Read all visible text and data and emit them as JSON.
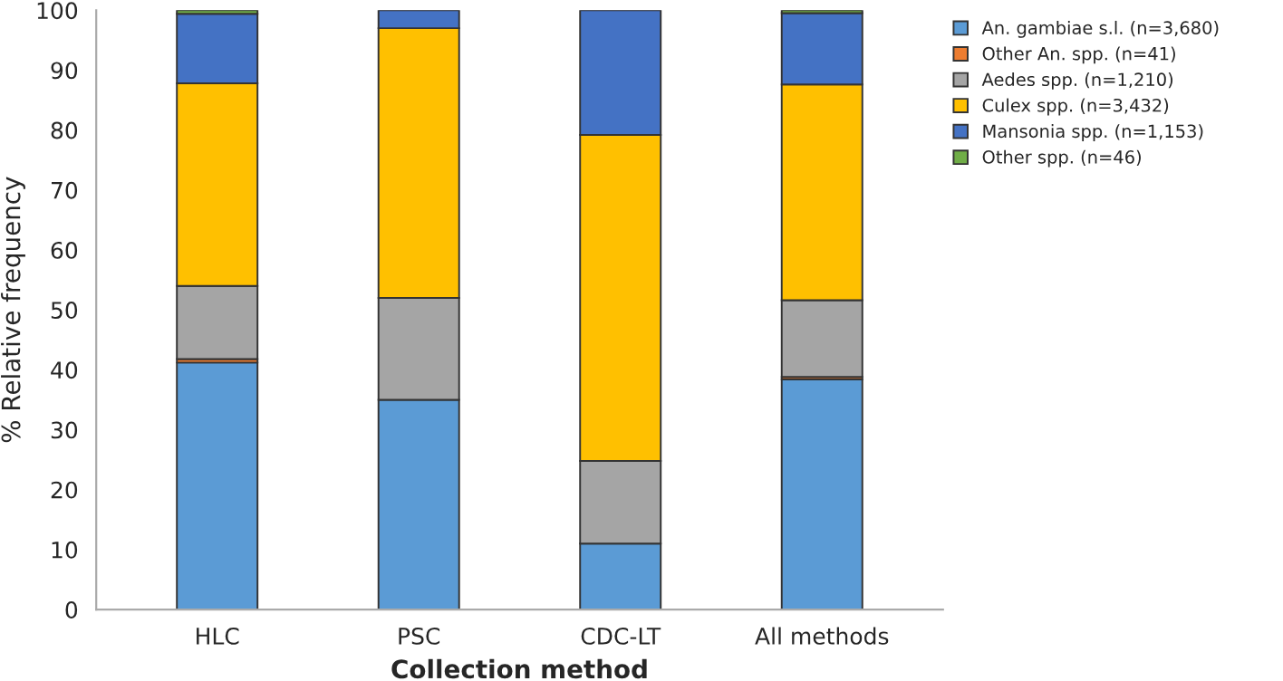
{
  "chart_data": {
    "type": "bar",
    "stacked": true,
    "xlabel": "Collection method",
    "ylabel": "% Relative frequency",
    "categories": [
      "HLC",
      "PSC",
      "CDC-LT",
      "All methods"
    ],
    "series": [
      {
        "name": "An. gambiae s.l. (n=3,680)",
        "color": "#5b9bd5",
        "values": [
          41.2,
          35,
          11,
          38.4
        ]
      },
      {
        "name": "Other An. spp. (n=41)",
        "color": "#ed7d31",
        "values": [
          0.6,
          0,
          0,
          0.4
        ]
      },
      {
        "name": "Aedes spp. (n=1,210)",
        "color": "#a5a5a5",
        "values": [
          12.2,
          17,
          13.8,
          12.8
        ]
      },
      {
        "name": "Culex spp. (n=3,432)",
        "color": "#ffc000",
        "values": [
          33.8,
          45,
          54.4,
          36
        ]
      },
      {
        "name": "Mansonia spp. (n=1,153)",
        "color": "#4472c4",
        "values": [
          11.6,
          3,
          20.8,
          11.9
        ]
      },
      {
        "name": "Other spp. (n=46)",
        "color": "#70ad47",
        "values": [
          0.6,
          0,
          0,
          0.5
        ]
      }
    ],
    "ylim": [
      0,
      100
    ],
    "yticks": [
      0,
      10,
      20,
      30,
      40,
      50,
      60,
      70,
      80,
      90,
      100
    ],
    "grid": false,
    "legend": "top right"
  }
}
